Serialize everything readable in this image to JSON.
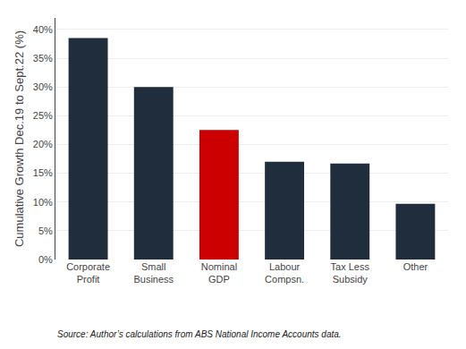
{
  "chart_data": {
    "type": "bar",
    "categories": [
      "Corporate\nProfit",
      "Small\nBusiness",
      "Nominal\nGDP",
      "Labour\nCompsn.",
      "Tax Less\nSubsidy",
      "Other"
    ],
    "values": [
      38.5,
      30.0,
      22.5,
      17.0,
      16.7,
      9.7
    ],
    "colors": [
      "#1f2d3d",
      "#1f2d3d",
      "#cc0000",
      "#1f2d3d",
      "#1f2d3d",
      "#1f2d3d"
    ],
    "ylabel": "Cumulative Growth Dec.19 to Sept.22 (%)",
    "ylim": [
      0,
      42
    ],
    "yticks": [
      {
        "value": 0,
        "label": "0%"
      },
      {
        "value": 5,
        "label": "5%"
      },
      {
        "value": 10,
        "label": "10%"
      },
      {
        "value": 15,
        "label": "15%"
      },
      {
        "value": 20,
        "label": "20%"
      },
      {
        "value": 25,
        "label": "25%"
      },
      {
        "value": 30,
        "label": "30%"
      },
      {
        "value": 35,
        "label": "35%"
      },
      {
        "value": 40,
        "label": "40%"
      }
    ],
    "grid": true,
    "annotations": [
      "Source: Author’s calculations from ABS National Income Accounts data."
    ]
  }
}
